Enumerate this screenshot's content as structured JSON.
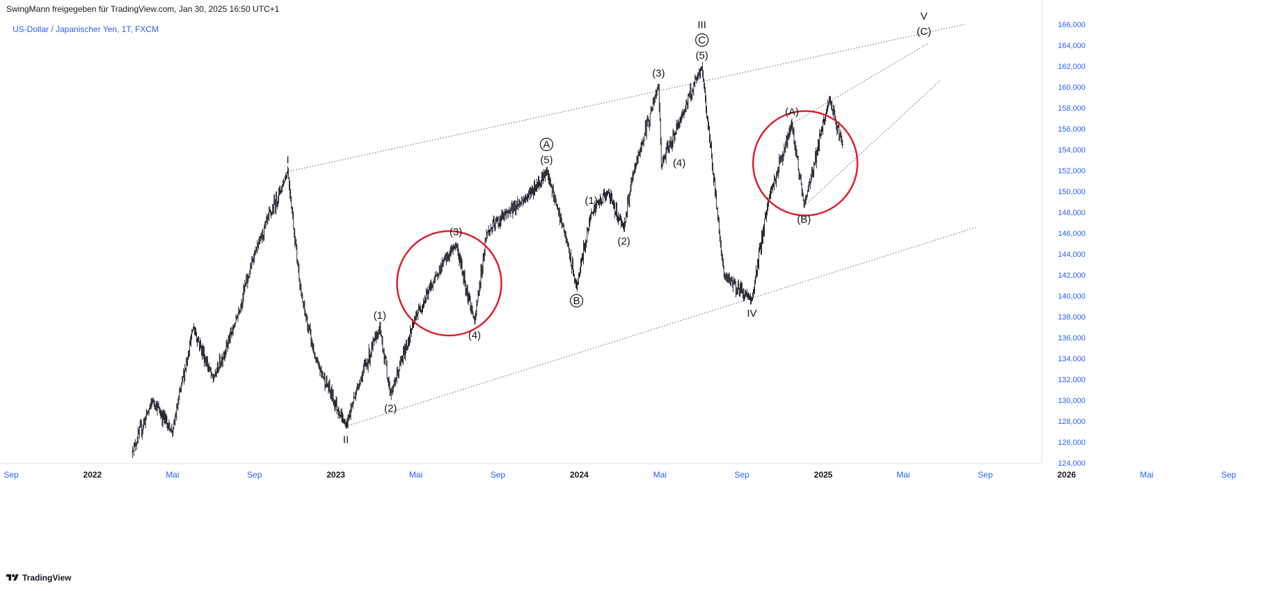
{
  "header": {
    "publisher": "SwingMann freigegeben für TradingView.com, Jan 30, 2025 16:50 UTC+1",
    "symbol": "US-Dollar / Japanischer Yen, 1T, FXCM"
  },
  "footer": {
    "brand": "TradingView"
  },
  "colors": {
    "candle": "#131722",
    "circle": "#e0202a",
    "line": "#787b86",
    "axis_text": "#2962ff"
  },
  "chart_data": {
    "type": "line",
    "title": "",
    "xlabel": "",
    "ylabel": "",
    "x_ticks": [
      "Sep",
      "2022",
      "Mai",
      "Sep",
      "2023",
      "Mai",
      "Sep",
      "2024",
      "Mai",
      "Sep",
      "2025",
      "Mai",
      "Sep",
      "2026",
      "Mai",
      "Sep"
    ],
    "x_ticks_bold": [
      "2022",
      "2023",
      "2024",
      "2025",
      "2026"
    ],
    "y_ticks": [
      "124,000",
      "126,000",
      "128,000",
      "130,000",
      "132,000",
      "134,000",
      "136,000",
      "138,000",
      "140,000",
      "142,000",
      "144,000",
      "146,000",
      "148,000",
      "150,000",
      "152,000",
      "154,000",
      "156,000",
      "158,000",
      "160,000",
      "162,000",
      "164,000",
      "166,000"
    ],
    "ylim": [
      124,
      166
    ],
    "grid": false,
    "series": [
      {
        "x": [
          "2022-03-01",
          "2022-04-01",
          "2022-05-01",
          "2022-06-01",
          "2022-07-01",
          "2022-08-01",
          "2022-09-01",
          "2022-10-21",
          "2022-11-10",
          "2022-12-01",
          "2023-01-16",
          "2023-02-01",
          "2023-03-08",
          "2023-03-24",
          "2023-05-01",
          "2023-06-01",
          "2023-06-30",
          "2023-07-28",
          "2023-08-15",
          "2023-09-15",
          "2023-10-15",
          "2023-11-13",
          "2023-12-10",
          "2023-12-28",
          "2024-01-19",
          "2024-02-13",
          "2024-03-08",
          "2024-03-21",
          "2024-04-29",
          "2024-05-03",
          "2024-06-01",
          "2024-07-03",
          "2024-08-05",
          "2024-09-16",
          "2024-10-10",
          "2024-11-15",
          "2024-12-03",
          "2025-01-10",
          "2025-01-30"
        ],
        "y": [
          125.0,
          130.0,
          127.0,
          137.0,
          132.0,
          137.0,
          144.0,
          151.9,
          140.0,
          134.0,
          127.5,
          131.0,
          137.0,
          130.5,
          138.0,
          142.0,
          145.0,
          137.5,
          146.0,
          148.0,
          149.5,
          151.9,
          146.0,
          140.8,
          148.0,
          150.0,
          146.5,
          151.5,
          160.2,
          152.5,
          157.0,
          161.9,
          142.0,
          139.6,
          149.0,
          156.5,
          148.6,
          158.8,
          154.5
        ]
      }
    ],
    "wave_labels": [
      {
        "label": "I",
        "x": "2022-10-21",
        "y": 151.9,
        "pos": "above"
      },
      {
        "label": "II",
        "x": "2023-01-16",
        "y": 127.5,
        "pos": "below"
      },
      {
        "label": "(1)",
        "x": "2023-03-08",
        "y": 137.0,
        "pos": "above"
      },
      {
        "label": "(2)",
        "x": "2023-03-24",
        "y": 130.5,
        "pos": "below"
      },
      {
        "label": "(3)",
        "x": "2023-06-30",
        "y": 145.0,
        "pos": "above"
      },
      {
        "label": "(4)",
        "x": "2023-07-28",
        "y": 137.5,
        "pos": "below"
      },
      {
        "label": "(5)",
        "x": "2023-11-13",
        "y": 151.9,
        "pos": "above"
      },
      {
        "label": "A",
        "x": "2023-11-13",
        "y": 151.9,
        "pos": "above",
        "circled": true
      },
      {
        "label": "B",
        "x": "2023-12-28",
        "y": 140.8,
        "pos": "below",
        "circled": true
      },
      {
        "label": "(1)",
        "x": "2024-01-19",
        "y": 148.0,
        "pos": "above"
      },
      {
        "label": "(2)",
        "x": "2024-03-08",
        "y": 146.5,
        "pos": "below"
      },
      {
        "label": "(3)",
        "x": "2024-04-29",
        "y": 160.2,
        "pos": "above"
      },
      {
        "label": "(4)",
        "x": "2024-05-30",
        "y": 154.0,
        "pos": "below"
      },
      {
        "label": "(5)",
        "x": "2024-07-03",
        "y": 161.9,
        "pos": "above"
      },
      {
        "label": "C",
        "x": "2024-07-03",
        "y": 161.9,
        "pos": "above",
        "circled": true
      },
      {
        "label": "III",
        "x": "2024-07-03",
        "y": 161.9,
        "pos": "above"
      },
      {
        "label": "IV",
        "x": "2024-09-16",
        "y": 139.6,
        "pos": "below"
      },
      {
        "label": "(A)",
        "x": "2024-11-15",
        "y": 156.5,
        "pos": "above"
      },
      {
        "label": "(B)",
        "x": "2024-12-03",
        "y": 148.6,
        "pos": "below"
      },
      {
        "label": "(C)",
        "x": "2025-06-01",
        "y": 164.2,
        "pos": "above"
      },
      {
        "label": "V",
        "x": "2025-06-01",
        "y": 164.2,
        "pos": "above"
      }
    ],
    "trendlines": [
      {
        "from": {
          "x": "2022-10-21",
          "y": 151.9
        },
        "to": {
          "x": "2025-08-01",
          "y": 166.0
        }
      },
      {
        "from": {
          "x": "2023-01-16",
          "y": 127.5
        },
        "to": {
          "x": "2025-08-20",
          "y": 146.6
        }
      },
      {
        "from": {
          "x": "2024-11-15",
          "y": 156.5
        },
        "to": {
          "x": "2025-06-08",
          "y": 164.2
        }
      },
      {
        "from": {
          "x": "2024-12-03",
          "y": 148.6
        },
        "to": {
          "x": "2025-06-25",
          "y": 160.6
        }
      }
    ],
    "highlight_circles": [
      {
        "center": {
          "x": "2023-06-20",
          "y": 141.2
        }
      },
      {
        "center": {
          "x": "2024-12-05",
          "y": 152.7
        }
      }
    ]
  }
}
